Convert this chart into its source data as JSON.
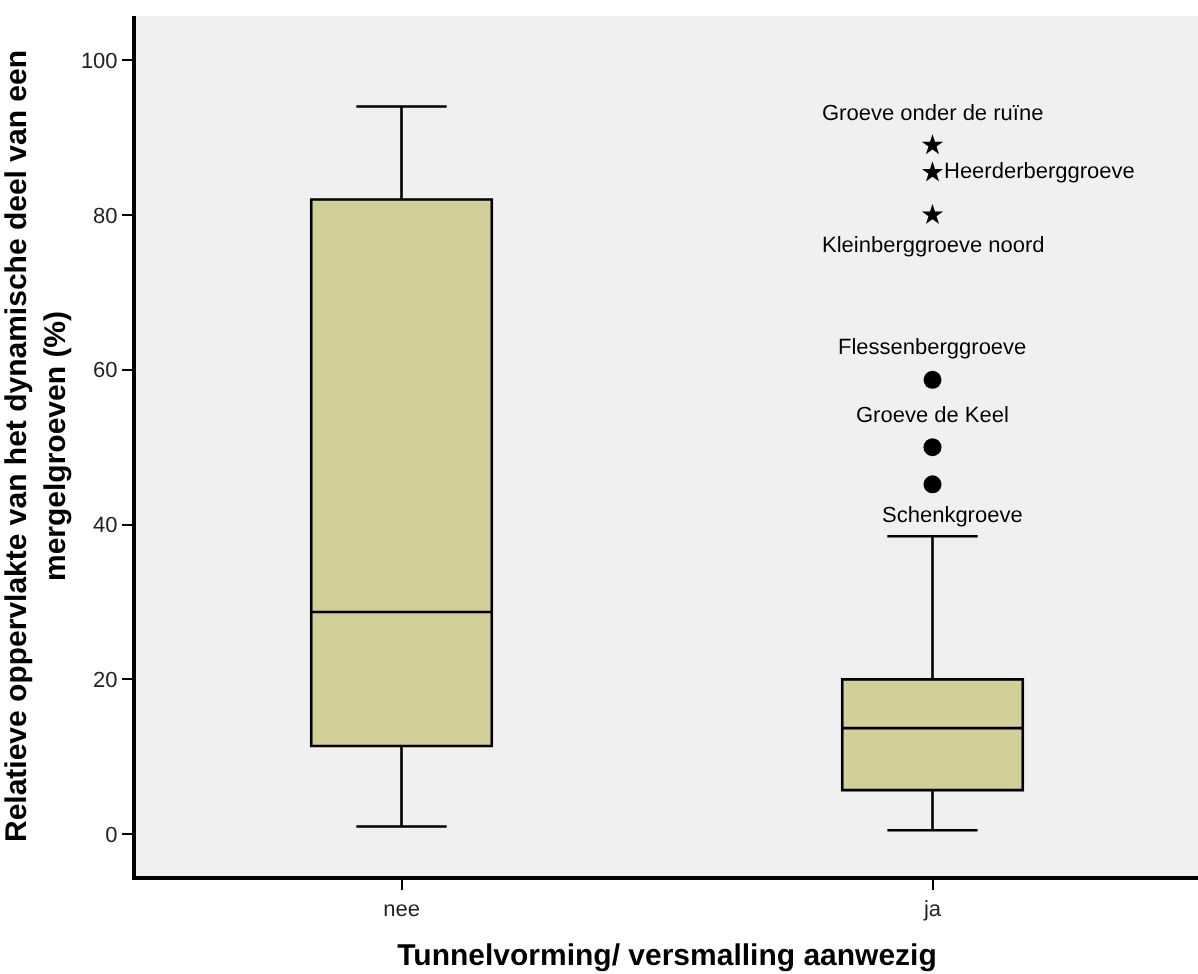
{
  "chart_data": {
    "type": "box",
    "xlabel": "Tunnelvorming/ versmalling aanwezig",
    "ylabel": "Relatieve oppervlakte van het dynamische deel van een mergelgroeven (%)",
    "categories": [
      "nee",
      "ja"
    ],
    "color": "#d3cf98",
    "boxes": [
      {
        "low": 1,
        "q1": 11.4,
        "median": 28.7,
        "q3": 82,
        "high": 94
      },
      {
        "low": 0.5,
        "q1": 5.7,
        "median": 13.7,
        "q3": 20,
        "high": 38.5
      }
    ],
    "series": [
      {
        "type": "scatter",
        "marker": "circle",
        "color": "#000000",
        "x": [
          "ja",
          "ja",
          "ja"
        ],
        "values": [
          58.7,
          50,
          45.2
        ]
      },
      {
        "type": "scatter",
        "marker": "star",
        "color": "#000000",
        "x": [
          "ja",
          "ja",
          "ja"
        ],
        "values": [
          89,
          85.5,
          80
        ]
      }
    ],
    "annotations": [
      {
        "text": "Groeve onder de ruïne",
        "x": "ja",
        "y": 89
      },
      {
        "text": "Heerderberggroeve",
        "x": "ja",
        "y": 85.5
      },
      {
        "text": "Kleinberggroeve noord",
        "x": "ja",
        "y": 80
      },
      {
        "text": "Flessenberggroeve",
        "x": "ja",
        "y": 58.7
      },
      {
        "text": "Groeve de Keel",
        "x": "ja",
        "y": 50
      },
      {
        "text": "Schenkgroeve",
        "x": "ja",
        "y": 45.2
      }
    ],
    "ylim": [
      -5.4,
      105.7
    ],
    "yticks": [
      0,
      20,
      40,
      60,
      80,
      100
    ]
  }
}
